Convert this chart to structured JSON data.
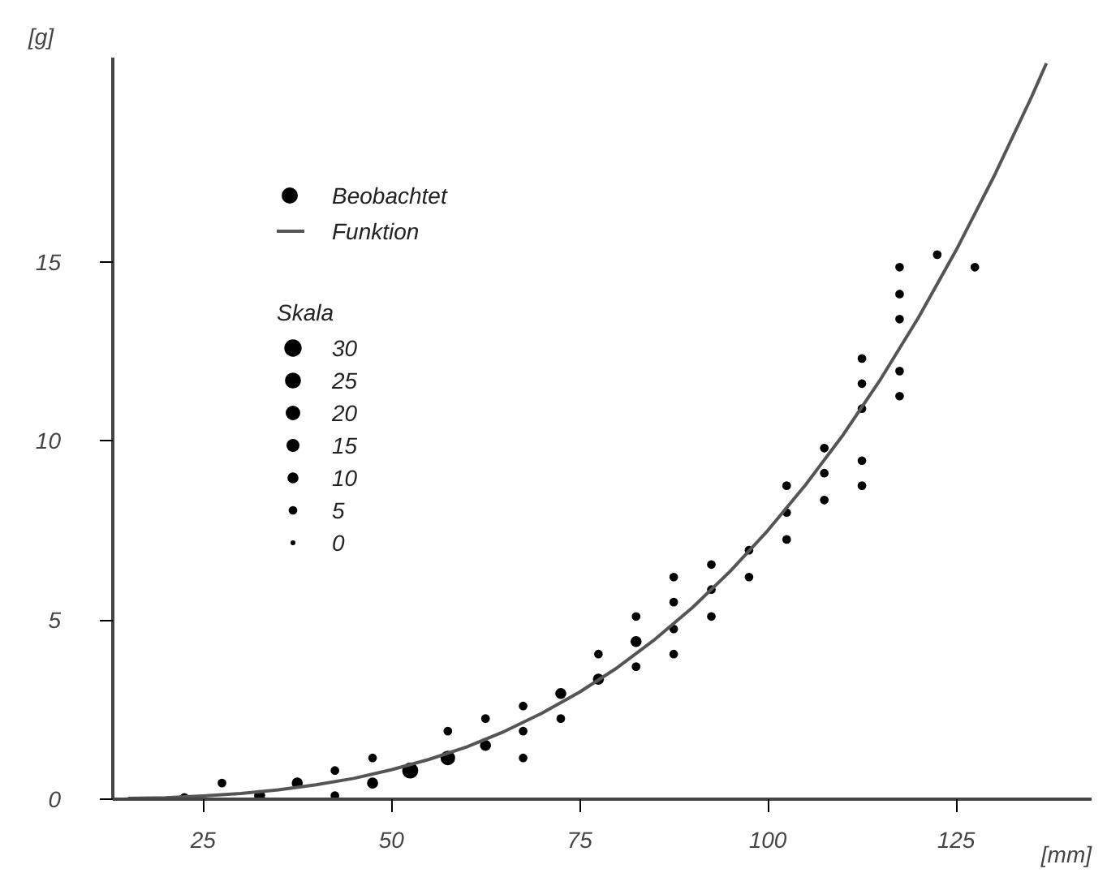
{
  "chart_data": {
    "type": "bubble",
    "xlabel": "[mm]",
    "ylabel": "[g]",
    "legend_title": "Skala",
    "xlim": [
      13,
      143
    ],
    "ylim": [
      0,
      20.7
    ],
    "xticks": [
      25,
      50,
      75,
      100,
      125
    ],
    "yticks": [
      0,
      5,
      10,
      15
    ],
    "size_legend": [
      30,
      25,
      20,
      15,
      10,
      5,
      0
    ],
    "legend": "top left",
    "grid": false,
    "series": [
      {
        "name": "Beobachtet",
        "color": "#000000",
        "x": [
          22.5,
          27.5,
          32.5,
          37.5,
          42.5,
          42.5,
          47.5,
          47.5,
          52.5,
          57.5,
          57.5,
          62.5,
          62.5,
          67.5,
          67.5,
          67.5,
          72.5,
          72.5,
          77.5,
          77.5,
          82.5,
          82.5,
          82.5,
          87.5,
          87.5,
          87.5,
          87.5,
          92.5,
          92.5,
          92.5,
          97.5,
          97.5,
          102.5,
          102.5,
          102.5,
          107.5,
          107.5,
          107.5,
          112.5,
          112.5,
          112.5,
          112.5,
          112.5,
          117.5,
          117.5,
          117.5,
          117.5,
          117.5,
          122.5,
          127.5
        ],
        "values": [
          0.05,
          0.45,
          0.1,
          0.45,
          0.8,
          0.1,
          1.15,
          0.45,
          0.8,
          1.15,
          1.9,
          2.25,
          1.5,
          2.6,
          1.9,
          1.15,
          2.95,
          2.25,
          4.05,
          3.35,
          5.1,
          4.4,
          3.7,
          6.2,
          5.5,
          4.75,
          4.05,
          6.55,
          5.85,
          5.1,
          6.95,
          6.2,
          8.75,
          8.0,
          7.25,
          9.8,
          9.1,
          8.35,
          12.3,
          11.6,
          10.9,
          9.45,
          8.75,
          14.85,
          14.1,
          13.4,
          11.95,
          11.25,
          15.2,
          14.85
        ],
        "sizes": [
          5,
          5,
          10,
          10,
          5,
          5,
          5,
          10,
          25,
          20,
          5,
          5,
          10,
          5,
          5,
          5,
          10,
          5,
          5,
          10,
          5,
          10,
          5,
          5,
          5,
          5,
          5,
          5,
          5,
          5,
          5,
          5,
          5,
          5,
          5,
          5,
          5,
          5,
          5,
          5,
          5,
          5,
          5,
          5,
          5,
          5,
          5,
          5,
          5,
          5
        ]
      },
      {
        "name": "Funktion",
        "type": "line",
        "color": "#555555",
        "marker": "none",
        "x": [
          15,
          20,
          25,
          30,
          35,
          40,
          45,
          50,
          55,
          60,
          65,
          70,
          75,
          80,
          85,
          90,
          95,
          100,
          105,
          110,
          115,
          120,
          125,
          130,
          135,
          137
        ],
        "values": [
          0.02,
          0.04,
          0.09,
          0.16,
          0.26,
          0.4,
          0.58,
          0.82,
          1.11,
          1.46,
          1.89,
          2.4,
          2.99,
          3.67,
          4.46,
          5.35,
          6.36,
          7.5,
          8.77,
          10.17,
          11.73,
          13.44,
          15.32,
          17.37,
          19.59,
          20.54
        ]
      }
    ]
  }
}
